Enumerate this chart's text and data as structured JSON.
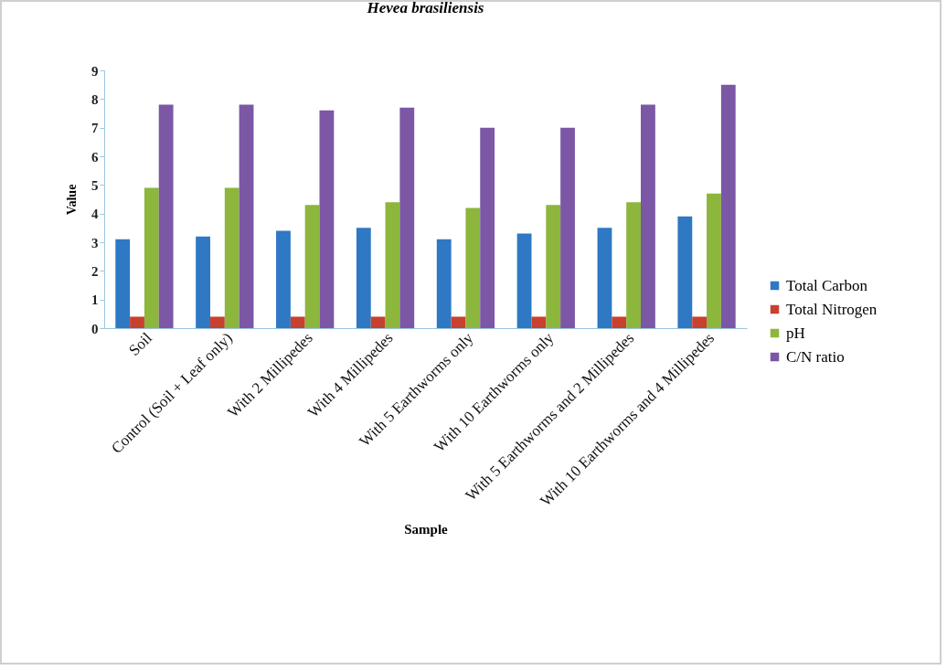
{
  "chart_data": {
    "type": "bar",
    "title": "Hevea brasiliensis",
    "xlabel": "Sample",
    "ylabel": "Value",
    "categories": [
      "Soil",
      "Control (Soil + Leaf only)",
      "With 2 Millipedes",
      "With 4 Millipedes",
      "With 5 Earthworms only",
      "With 10 Earthworms only",
      "With 5 Earthworms and 2 Millipedes",
      "With 10 Earthworms and 4  Millipedes"
    ],
    "series": [
      {
        "name": "Total Carbon",
        "color": "#2e78c4",
        "values": [
          3.1,
          3.2,
          3.4,
          3.5,
          3.1,
          3.3,
          3.5,
          3.9
        ]
      },
      {
        "name": "Total Nitrogen",
        "color": "#c8412e",
        "values": [
          0.4,
          0.4,
          0.4,
          0.4,
          0.4,
          0.4,
          0.4,
          0.4
        ]
      },
      {
        "name": "pH",
        "color": "#8cb63c",
        "values": [
          4.9,
          4.9,
          4.3,
          4.4,
          4.2,
          4.3,
          4.4,
          4.7
        ]
      },
      {
        "name": "C/N ratio",
        "color": "#7b57a6",
        "values": [
          7.8,
          7.8,
          7.6,
          7.7,
          7.0,
          7.0,
          7.8,
          8.5
        ]
      }
    ],
    "ylim": [
      0,
      9
    ],
    "yticks": [
      0,
      1,
      2,
      3,
      4,
      5,
      6,
      7,
      8,
      9
    ],
    "legend": "right"
  }
}
